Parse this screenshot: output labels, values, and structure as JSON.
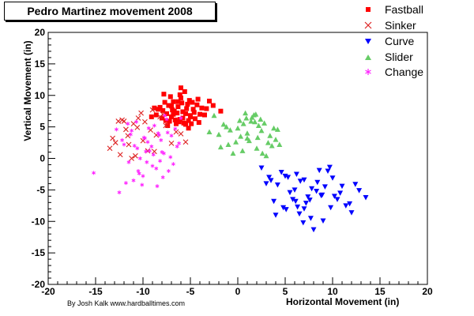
{
  "chart_data": {
    "type": "scatter",
    "title": "Pedro Martinez movement 2008",
    "credit": "By Josh Kalk www.hardballtimes.com",
    "xlabel": "Horizontal Movement (in)",
    "ylabel": "Vertical Movement (in)",
    "xlim": [
      -20,
      20
    ],
    "ylim": [
      -20,
      20
    ],
    "xticks": [
      -20,
      -15,
      -10,
      -5,
      0,
      5,
      10,
      15,
      20
    ],
    "yticks": [
      -20,
      -15,
      -10,
      -5,
      0,
      5,
      10,
      15,
      20
    ],
    "grid": false,
    "legend_position": "top-right",
    "series": [
      {
        "name": "Fastball",
        "marker": "square",
        "color": "#ff0000",
        "x": [
          -5.8,
          -6.3,
          -7.0,
          -5.2,
          -4.7,
          -6.8,
          -7.5,
          -5.5,
          -6.1,
          -4.3,
          -5.0,
          -7.9,
          -6.6,
          -5.9,
          -4.0,
          -7.2,
          -6.0,
          -5.4,
          -8.0,
          -6.9,
          -5.7,
          -4.5,
          -7.7,
          -3.8,
          -6.4,
          -5.1,
          -8.4,
          -6.2,
          -4.9,
          -7.3,
          -5.6,
          -3.5,
          -6.7,
          -5.3,
          -8.6,
          -7.1,
          -4.6,
          -6.5,
          -5.8,
          -4.2,
          -7.6,
          -6.0,
          -3.3,
          -8.2,
          -5.0,
          -6.8,
          -4.8,
          -7.4,
          -5.5,
          -6.3,
          -2.6,
          -1.8,
          -3.0,
          -9.1,
          -8.8,
          -7.8,
          -4.1,
          -5.2,
          -6.1,
          -7.0
        ],
        "y": [
          7.4,
          8.2,
          6.6,
          6.0,
          7.8,
          9.0,
          7.1,
          5.4,
          10.1,
          8.5,
          6.8,
          7.6,
          6.1,
          8.8,
          7.0,
          5.9,
          9.6,
          7.9,
          6.4,
          7.7,
          5.6,
          6.3,
          8.9,
          8.0,
          7.2,
          9.2,
          7.8,
          5.8,
          5.5,
          8.4,
          10.6,
          6.9,
          7.5,
          8.6,
          6.9,
          9.8,
          7.3,
          5.5,
          6.4,
          9.4,
          6.0,
          11.2,
          7.9,
          8.1,
          6.6,
          7.0,
          8.9,
          5.2,
          7.1,
          9.0,
          8.4,
          7.5,
          9.1,
          6.6,
          8.0,
          10.2,
          5.7,
          4.8,
          6.2,
          8.3
        ]
      },
      {
        "name": "Sinker",
        "marker": "x",
        "color": "#dd2222",
        "x": [
          -13.5,
          -12.4,
          -11.0,
          -10.5,
          -9.8,
          -12.0,
          -13.2,
          -11.5,
          -9.0,
          -8.2,
          -10.8,
          -12.9,
          -7.6,
          -11.8,
          -6.5,
          -9.5,
          -8.6,
          -10.2,
          -12.6,
          -7.0,
          -11.2,
          -9.2,
          -6.0,
          -10.0,
          -8.8,
          -12.2,
          -5.5,
          -10.6,
          -7.9,
          -11.6
        ],
        "y": [
          1.6,
          0.6,
          5.5,
          6.4,
          5.8,
          5.9,
          3.2,
          2.2,
          7.7,
          6.6,
          0.4,
          2.5,
          5.2,
          4.6,
          4.2,
          1.2,
          3.7,
          7.2,
          5.9,
          2.4,
          0.0,
          4.5,
          3.9,
          2.8,
          1.1,
          6.1,
          2.6,
          4.9,
          7.0,
          3.6
        ]
      },
      {
        "name": "Curve",
        "marker": "triangle-down",
        "color": "#0000ff",
        "x": [
          2.5,
          3.5,
          4.2,
          5.0,
          6.1,
          7.0,
          8.3,
          9.2,
          10.5,
          11.8,
          13.5,
          4.8,
          6.6,
          7.7,
          8.9,
          10.0,
          12.0,
          5.5,
          3.0,
          9.8,
          6.2,
          7.4,
          8.0,
          11.0,
          4.0,
          5.8,
          9.5,
          10.8,
          6.9,
          7.8,
          8.6,
          3.8,
          12.8,
          5.3,
          6.5,
          7.2,
          9.0,
          8.4,
          10.2,
          11.4,
          4.6,
          6.0,
          7.6,
          12.4,
          5.1,
          8.8,
          9.7,
          7.0,
          6.3,
          3.3
        ],
        "y": [
          -1.5,
          -3.5,
          -4.2,
          -2.8,
          -6.8,
          -8.0,
          -5.2,
          -4.5,
          -6.5,
          -7.2,
          -6.2,
          -7.8,
          -3.6,
          -9.5,
          -5.8,
          -3.1,
          -8.6,
          -5.4,
          -4.0,
          -7.8,
          -2.5,
          -6.1,
          -11.3,
          -4.4,
          -9.0,
          -6.5,
          -2.0,
          -5.5,
          -10.2,
          -4.8,
          -1.9,
          -6.8,
          -5.1,
          -3.0,
          -8.8,
          -7.1,
          -9.9,
          -3.8,
          -6.0,
          -7.5,
          -2.2,
          -5.0,
          -6.6,
          -4.1,
          -8.1,
          -5.9,
          -1.4,
          -3.4,
          -7.7,
          -3.0
        ]
      },
      {
        "name": "Slider",
        "marker": "triangle-up",
        "color": "#66cc66",
        "x": [
          -2.5,
          -1.5,
          -0.8,
          0.2,
          1.0,
          1.8,
          2.5,
          3.2,
          4.0,
          -1.0,
          0.5,
          1.5,
          2.2,
          3.0,
          -2.0,
          0.0,
          0.8,
          1.2,
          2.8,
          3.6,
          -0.5,
          1.7,
          2.0,
          4.2,
          -1.2,
          0.3,
          0.6,
          2.4,
          3.4,
          -3.0,
          1.0,
          1.9,
          2.6,
          -0.2,
          0.9,
          4.4,
          -1.8,
          1.4,
          3.8,
          2.1
        ],
        "y": [
          6.8,
          5.4,
          4.5,
          6.0,
          3.2,
          5.8,
          4.4,
          2.5,
          3.0,
          2.2,
          1.2,
          6.5,
          5.2,
          0.4,
          3.8,
          4.8,
          7.2,
          2.8,
          5.6,
          2.0,
          0.8,
          6.9,
          1.6,
          4.6,
          5.0,
          3.5,
          5.5,
          6.2,
          3.6,
          4.2,
          4.0,
          7.0,
          0.8,
          2.6,
          6.4,
          2.2,
          1.8,
          5.9,
          4.8,
          3.3
        ]
      },
      {
        "name": "Change",
        "marker": "star",
        "color": "#ff22ff",
        "x": [
          -15.2,
          -12.5,
          -11.8,
          -11.0,
          -10.5,
          -10.1,
          -9.6,
          -9.0,
          -8.6,
          -8.2,
          -7.8,
          -7.3,
          -6.8,
          -6.2,
          -12.0,
          -11.2,
          -10.7,
          -9.8,
          -9.3,
          -8.8,
          -8.0,
          -7.5,
          -7.0,
          -6.6,
          -11.5,
          -10.3,
          -9.5,
          -8.4,
          -7.7,
          -6.0,
          -12.8,
          -10.9,
          -9.9,
          -9.1,
          -8.5,
          -7.9,
          -7.1,
          -11.6,
          -10.0,
          -8.9,
          -8.1,
          -9.4,
          -10.6,
          -11.3,
          -12.2,
          -7.4,
          -8.3,
          -9.7,
          -6.4,
          -10.4
        ],
        "y": [
          -2.3,
          -5.4,
          -3.9,
          -3.5,
          -2.0,
          -4.2,
          -0.6,
          -1.2,
          -1.6,
          -0.4,
          0.8,
          -2.0,
          -0.9,
          2.4,
          2.2,
          4.4,
          5.8,
          3.2,
          1.2,
          5.2,
          1.0,
          6.2,
          3.6,
          4.7,
          -0.6,
          0.0,
          2.6,
          4.0,
          6.8,
          6.4,
          4.6,
          2.0,
          3.3,
          1.9,
          -4.4,
          -3.0,
          0.2,
          5.5,
          -2.8,
          0.6,
          2.9,
          4.8,
          1.6,
          3.8,
          2.9,
          4.1,
          3.7,
          1.1,
          1.9,
          -2.4
        ]
      }
    ]
  }
}
